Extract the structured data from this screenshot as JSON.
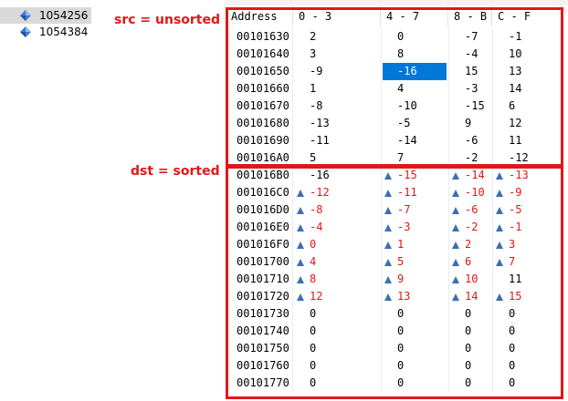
{
  "tree": {
    "items": [
      {
        "label": "1054256",
        "selected": true,
        "icon": "diamond-icon"
      },
      {
        "label": "1054384",
        "selected": false,
        "icon": "diamond-icon"
      }
    ]
  },
  "annotations": {
    "src": "src = unsorted",
    "dst": "dst = sorted"
  },
  "grid": {
    "headers": [
      "Address",
      "0 - 3",
      "4 - 7",
      "8 - B",
      "C - F"
    ],
    "rows": [
      {
        "addr": "00101630",
        "cells": [
          {
            "v": "2"
          },
          {
            "v": "0"
          },
          {
            "v": "-7"
          },
          {
            "v": "-1"
          }
        ]
      },
      {
        "addr": "00101640",
        "cells": [
          {
            "v": "3"
          },
          {
            "v": "8"
          },
          {
            "v": "-4"
          },
          {
            "v": "10"
          }
        ]
      },
      {
        "addr": "00101650",
        "cells": [
          {
            "v": "-9"
          },
          {
            "v": "-16",
            "selected": true
          },
          {
            "v": "15"
          },
          {
            "v": "13"
          }
        ]
      },
      {
        "addr": "00101660",
        "cells": [
          {
            "v": "1"
          },
          {
            "v": "4"
          },
          {
            "v": "-3"
          },
          {
            "v": "14"
          }
        ]
      },
      {
        "addr": "00101670",
        "cells": [
          {
            "v": "-8"
          },
          {
            "v": "-10"
          },
          {
            "v": "-15"
          },
          {
            "v": "6"
          }
        ]
      },
      {
        "addr": "00101680",
        "cells": [
          {
            "v": "-13"
          },
          {
            "v": "-5"
          },
          {
            "v": "9"
          },
          {
            "v": "12"
          }
        ]
      },
      {
        "addr": "00101690",
        "cells": [
          {
            "v": "-11"
          },
          {
            "v": "-14"
          },
          {
            "v": "-6"
          },
          {
            "v": "11"
          }
        ]
      },
      {
        "addr": "001016A0",
        "cells": [
          {
            "v": "5"
          },
          {
            "v": "7"
          },
          {
            "v": "-2"
          },
          {
            "v": "-12"
          }
        ]
      },
      {
        "addr": "001016B0",
        "cells": [
          {
            "v": "-16"
          },
          {
            "v": "-15",
            "changed": true,
            "marker": true
          },
          {
            "v": "-14",
            "changed": true,
            "marker": true
          },
          {
            "v": "-13",
            "changed": true,
            "marker": true
          }
        ]
      },
      {
        "addr": "001016C0",
        "cells": [
          {
            "v": "-12",
            "changed": true,
            "marker": true
          },
          {
            "v": "-11",
            "changed": true,
            "marker": true
          },
          {
            "v": "-10",
            "changed": true,
            "marker": true
          },
          {
            "v": "-9",
            "changed": true,
            "marker": true
          }
        ]
      },
      {
        "addr": "001016D0",
        "cells": [
          {
            "v": "-8",
            "changed": true,
            "marker": true
          },
          {
            "v": "-7",
            "changed": true,
            "marker": true
          },
          {
            "v": "-6",
            "changed": true,
            "marker": true
          },
          {
            "v": "-5",
            "changed": true,
            "marker": true
          }
        ]
      },
      {
        "addr": "001016E0",
        "cells": [
          {
            "v": "-4",
            "changed": true,
            "marker": true
          },
          {
            "v": "-3",
            "changed": true,
            "marker": true
          },
          {
            "v": "-2",
            "changed": true,
            "marker": true
          },
          {
            "v": "-1",
            "changed": true,
            "marker": true
          }
        ]
      },
      {
        "addr": "001016F0",
        "cells": [
          {
            "v": "0",
            "changed": true,
            "marker": true
          },
          {
            "v": "1",
            "changed": true,
            "marker": true
          },
          {
            "v": "2",
            "changed": true,
            "marker": true
          },
          {
            "v": "3",
            "changed": true,
            "marker": true
          }
        ]
      },
      {
        "addr": "00101700",
        "cells": [
          {
            "v": "4",
            "changed": true,
            "marker": true
          },
          {
            "v": "5",
            "changed": true,
            "marker": true
          },
          {
            "v": "6",
            "changed": true,
            "marker": true
          },
          {
            "v": "7",
            "changed": true,
            "marker": true
          }
        ]
      },
      {
        "addr": "00101710",
        "cells": [
          {
            "v": "8",
            "changed": true,
            "marker": true
          },
          {
            "v": "9",
            "changed": true,
            "marker": true
          },
          {
            "v": "10",
            "changed": true,
            "marker": true
          },
          {
            "v": "11"
          }
        ]
      },
      {
        "addr": "00101720",
        "cells": [
          {
            "v": "12",
            "changed": true,
            "marker": true
          },
          {
            "v": "13",
            "changed": true,
            "marker": true
          },
          {
            "v": "14",
            "changed": true,
            "marker": true
          },
          {
            "v": "15",
            "changed": true,
            "marker": true
          }
        ]
      },
      {
        "addr": "00101730",
        "cells": [
          {
            "v": "0"
          },
          {
            "v": "0"
          },
          {
            "v": "0"
          },
          {
            "v": "0"
          }
        ]
      },
      {
        "addr": "00101740",
        "cells": [
          {
            "v": "0"
          },
          {
            "v": "0"
          },
          {
            "v": "0"
          },
          {
            "v": "0"
          }
        ]
      },
      {
        "addr": "00101750",
        "cells": [
          {
            "v": "0"
          },
          {
            "v": "0"
          },
          {
            "v": "0"
          },
          {
            "v": "0"
          }
        ]
      },
      {
        "addr": "00101760",
        "cells": [
          {
            "v": "0"
          },
          {
            "v": "0"
          },
          {
            "v": "0"
          },
          {
            "v": "0"
          }
        ]
      },
      {
        "addr": "00101770",
        "cells": [
          {
            "v": "0"
          },
          {
            "v": "0"
          },
          {
            "v": "0"
          },
          {
            "v": "0"
          }
        ]
      }
    ]
  },
  "colors": {
    "annotation": "#e01818",
    "selection": "#0078d7",
    "marker": "#3d6fb0"
  }
}
